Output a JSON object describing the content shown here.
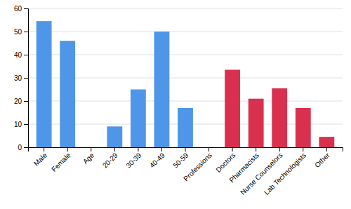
{
  "chart_data": {
    "type": "bar",
    "categories": [
      "Male",
      "Female",
      "Age",
      "20-29",
      "30-39",
      "40-49",
      "50-59",
      "Professions",
      "Doctors",
      "Pharmacists",
      "Nurse Counselors",
      "Lab Technologists",
      "Other"
    ],
    "values": [
      54.5,
      46,
      0,
      9,
      25,
      50,
      17,
      0,
      33.5,
      21,
      25.5,
      17,
      4.5
    ],
    "colors": [
      "#4f96e8",
      "#4f96e8",
      "#4f96e8",
      "#4f96e8",
      "#4f96e8",
      "#4f96e8",
      "#4f96e8",
      "#d93050",
      "#d93050",
      "#d93050",
      "#d93050",
      "#d93050",
      "#d93050"
    ],
    "ylim": [
      0,
      60
    ],
    "yticks": [
      0,
      10,
      20,
      30,
      40,
      50,
      60
    ],
    "grid": true
  }
}
